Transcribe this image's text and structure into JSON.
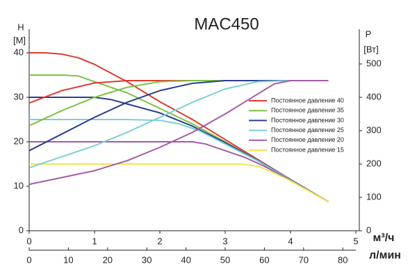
{
  "chart_data": {
    "type": "line",
    "title": "MAC450",
    "y_label": "H",
    "y_unit": "[M]",
    "y2_label": "P",
    "y2_unit": "[Вт]",
    "x_label": "м³/ч",
    "x2_label": "л/мин",
    "xlim": [
      0,
      5
    ],
    "xticks": [
      0,
      1,
      2,
      3,
      4,
      5
    ],
    "x2lim": [
      0,
      83.33
    ],
    "x2ticks": [
      0,
      10,
      20,
      30,
      40,
      50,
      60,
      70,
      80
    ],
    "ylim": [
      0,
      45
    ],
    "yticks": [
      0,
      10,
      20,
      30,
      40
    ],
    "y2lim": [
      0,
      600
    ],
    "y2ticks": [
      0,
      100,
      200,
      300,
      400,
      500
    ],
    "legend": "right",
    "series": [
      {
        "name": "Постоянное давление 40",
        "color": "#e0392e",
        "x": [
          0,
          0.25,
          0.5,
          0.75,
          1,
          1.5,
          2,
          2.5,
          3,
          3.5,
          4,
          4.58
        ],
        "values": [
          40,
          40,
          39.7,
          38.9,
          37.4,
          33.5,
          29,
          25,
          20.5,
          16,
          11.5,
          6.5
        ]
      },
      {
        "name": "Постоянное давление 35",
        "color": "#7cc242",
        "x": [
          0,
          0.5,
          0.75,
          1,
          1.5,
          2,
          2.5,
          3,
          3.5,
          4,
          4.58
        ],
        "values": [
          35,
          35,
          34.8,
          33.5,
          31,
          27.5,
          24,
          20,
          15.8,
          11.5,
          6.5
        ]
      },
      {
        "name": "Постоянное давление 30",
        "color": "#2b3d8f",
        "x": [
          0,
          1,
          1.25,
          1.5,
          2,
          2.5,
          3,
          3.5,
          4,
          4.58
        ],
        "values": [
          30,
          30,
          29.5,
          28.5,
          26.5,
          23.5,
          19.8,
          15.8,
          11.5,
          6.5
        ]
      },
      {
        "name": "Постоянное давление 25",
        "color": "#7ccfd6",
        "x": [
          0,
          1,
          1.5,
          2,
          2.3,
          2.6,
          3,
          3.5,
          4,
          4.58
        ],
        "values": [
          25,
          25,
          25,
          24.8,
          24,
          22.5,
          19.5,
          15.7,
          11.4,
          6.5
        ]
      },
      {
        "name": "Постоянное давление 20",
        "color": "#a35aa8",
        "x": [
          0,
          2,
          2.5,
          2.7,
          3,
          3.3,
          3.6,
          4,
          4.58
        ],
        "values": [
          20,
          20,
          20,
          19.5,
          18,
          16.5,
          14.5,
          11.3,
          6.5
        ]
      },
      {
        "name": "Постоянное давление 15",
        "color": "#f2e64b",
        "x": [
          0,
          2,
          3,
          3.25,
          3.5,
          3.75,
          4,
          4.58
        ],
        "values": [
          15,
          15,
          15,
          15,
          14.5,
          13,
          11.2,
          6.5
        ]
      },
      {
        "color": "#e0392e",
        "axis": "y2",
        "x": [
          0,
          0.5,
          1,
          1.5,
          4.58
        ],
        "values": [
          383,
          420,
          443,
          450,
          450
        ]
      },
      {
        "color": "#7cc242",
        "axis": "y2",
        "x": [
          0,
          0.5,
          1,
          1.5,
          2,
          2.5,
          4.58
        ],
        "values": [
          315,
          360,
          400,
          430,
          447,
          450,
          450
        ]
      },
      {
        "color": "#2b3d8f",
        "axis": "y2",
        "x": [
          0,
          0.5,
          1,
          1.5,
          2,
          2.5,
          3,
          4.58
        ],
        "values": [
          240,
          290,
          340,
          385,
          420,
          442,
          450,
          450
        ]
      },
      {
        "color": "#7ccfd6",
        "axis": "y2",
        "x": [
          0,
          1,
          1.5,
          2,
          2.5,
          3,
          3.5,
          4,
          4.58
        ],
        "values": [
          189,
          255,
          295,
          340,
          385,
          425,
          447,
          450,
          450
        ]
      },
      {
        "color": "#a35aa8",
        "axis": "y2",
        "x": [
          0,
          1,
          1.5,
          2,
          2.5,
          3,
          3.5,
          3.75,
          4,
          4.58
        ],
        "values": [
          139,
          180,
          210,
          250,
          295,
          350,
          410,
          440,
          450,
          450
        ]
      }
    ]
  }
}
